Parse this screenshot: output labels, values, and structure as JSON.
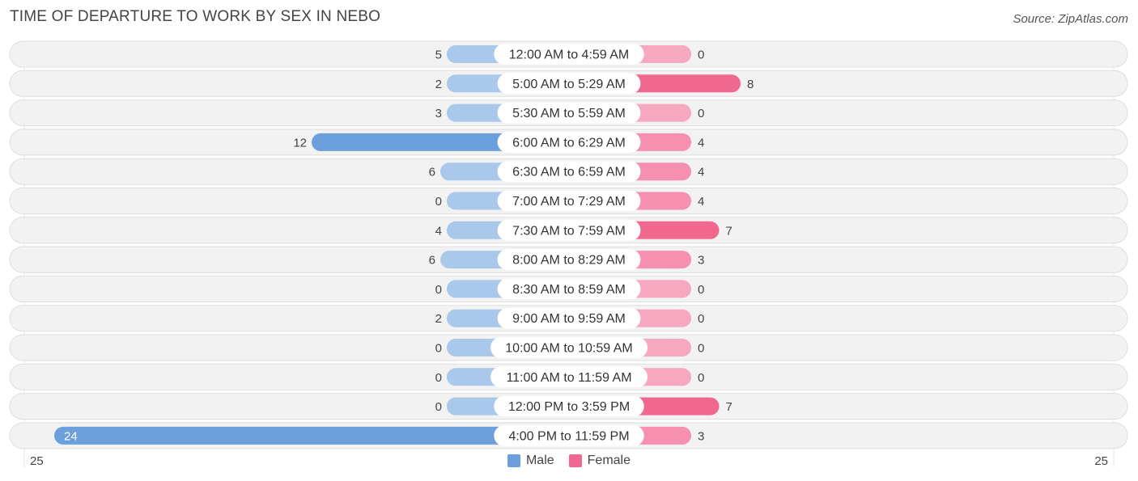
{
  "title": "TIME OF DEPARTURE TO WORK BY SEX IN NEBO",
  "source": "Source: ZipAtlas.com",
  "chart_data": {
    "type": "bar",
    "orientation": "horizontal-diverging",
    "categories": [
      "12:00 AM to 4:59 AM",
      "5:00 AM to 5:29 AM",
      "5:30 AM to 5:59 AM",
      "6:00 AM to 6:29 AM",
      "6:30 AM to 6:59 AM",
      "7:00 AM to 7:29 AM",
      "7:30 AM to 7:59 AM",
      "8:00 AM to 8:29 AM",
      "8:30 AM to 8:59 AM",
      "9:00 AM to 9:59 AM",
      "10:00 AM to 10:59 AM",
      "11:00 AM to 11:59 AM",
      "12:00 PM to 3:59 PM",
      "4:00 PM to 11:59 PM"
    ],
    "series": [
      {
        "name": "Male",
        "values": [
          5,
          2,
          3,
          12,
          6,
          0,
          4,
          6,
          0,
          2,
          0,
          0,
          0,
          24
        ],
        "color": "#6ba0dc",
        "light_color": "#a9c8ea"
      },
      {
        "name": "Female",
        "values": [
          0,
          8,
          0,
          4,
          4,
          4,
          7,
          3,
          0,
          0,
          0,
          0,
          7,
          3
        ],
        "color": "#f06890",
        "light_color": "#f6a8c0"
      }
    ],
    "axis_min_label": "25",
    "axis_max_label": "25",
    "xlim": [
      -25,
      25
    ],
    "legend_position": "bottom-center"
  }
}
